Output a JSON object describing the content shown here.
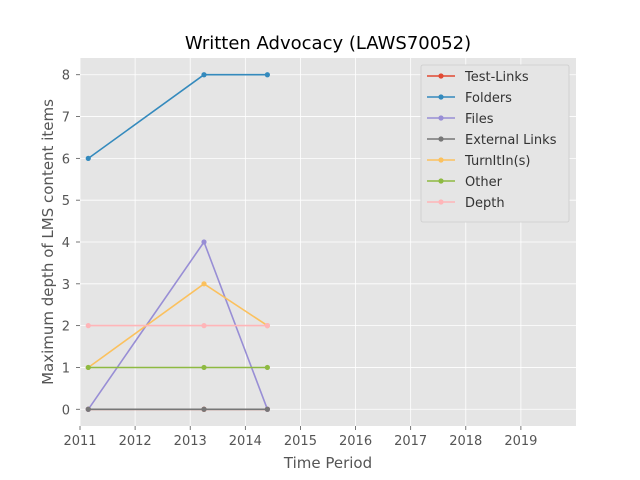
{
  "chart_data": {
    "type": "line",
    "title": "Written Advocacy (LAWS70052)",
    "xlabel": "Time Period",
    "ylabel": "Maximum depth of LMS content items",
    "xlim": [
      2011,
      2020
    ],
    "ylim": [
      -0.4,
      8.4
    ],
    "x_ticks": [
      "2011",
      "2012",
      "2013",
      "2014",
      "2015",
      "2016",
      "2017",
      "2018",
      "2019"
    ],
    "y_ticks": [
      "0",
      "1",
      "2",
      "3",
      "4",
      "5",
      "6",
      "7",
      "8"
    ],
    "x_tick_values": [
      2011,
      2012,
      2013,
      2014,
      2015,
      2016,
      2017,
      2018,
      2019
    ],
    "y_tick_values": [
      0,
      1,
      2,
      3,
      4,
      5,
      6,
      7,
      8
    ],
    "x": [
      2011.15,
      2013.25,
      2014.4
    ],
    "grid": true,
    "legend_position": "top-right",
    "series": [
      {
        "name": "Test-Links",
        "color": "#E24A33",
        "values": [
          0,
          0,
          0
        ]
      },
      {
        "name": "Folders",
        "color": "#348ABD",
        "values": [
          6,
          8,
          8
        ]
      },
      {
        "name": "Files",
        "color": "#988ED5",
        "values": [
          0,
          4,
          0
        ]
      },
      {
        "name": "External Links",
        "color": "#777777",
        "values": [
          0,
          0,
          0
        ]
      },
      {
        "name": "TurnItIn(s)",
        "color": "#FBC15E",
        "values": [
          1,
          3,
          2
        ]
      },
      {
        "name": "Other",
        "color": "#8EBA42",
        "values": [
          1,
          1,
          1
        ]
      },
      {
        "name": "Depth",
        "color": "#FFB5B8",
        "values": [
          2,
          2,
          2
        ]
      }
    ]
  }
}
